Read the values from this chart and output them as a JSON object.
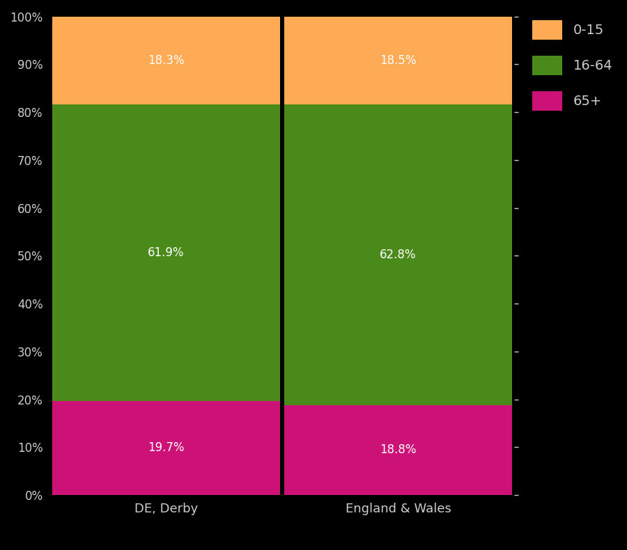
{
  "categories": [
    "DE, Derby",
    "England & Wales"
  ],
  "segments": {
    "65+": [
      19.7,
      18.8
    ],
    "16-64": [
      61.9,
      62.8
    ],
    "0-15": [
      18.3,
      18.5
    ]
  },
  "colors": {
    "65+": "#CC1177",
    "16-64": "#4a8a1a",
    "0-15": "#FFAA55"
  },
  "label_colors": {
    "65+": "white",
    "16-64": "white",
    "0-15": "white"
  },
  "background_color": "#000000",
  "text_color": "#cccccc",
  "ytick_labels": [
    "0%",
    "10%",
    "20%",
    "30%",
    "40%",
    "50%",
    "60%",
    "70%",
    "80%",
    "90%",
    "100%"
  ],
  "ytick_values": [
    0,
    10,
    20,
    30,
    40,
    50,
    60,
    70,
    80,
    90,
    100
  ],
  "legend_order": [
    "0-15",
    "16-64",
    "65+"
  ],
  "bar_width": 0.98
}
